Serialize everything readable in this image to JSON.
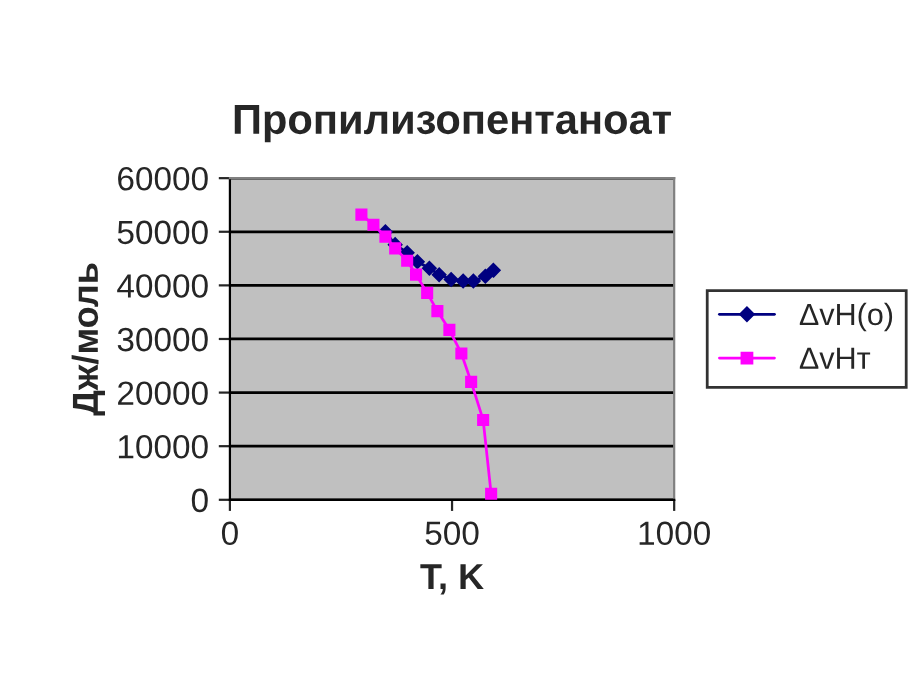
{
  "chart_data": {
    "type": "line",
    "title": "Пропилизопентаноат",
    "xlabel": "T, K",
    "ylabel": "Дж/моль",
    "xlim": [
      0,
      1000
    ],
    "xticks": [
      0,
      500,
      1000
    ],
    "ylim": [
      0,
      60000
    ],
    "yticks": [
      0,
      10000,
      20000,
      30000,
      40000,
      50000,
      60000
    ],
    "grid": "y",
    "legend": "right",
    "series": [
      {
        "name": "ΔvH(o)",
        "color": "#000080",
        "marker": "diamond",
        "x": [
          350,
          372,
          399,
          422,
          449,
          471,
          498,
          525,
          548,
          575,
          593
        ],
        "values": [
          50000,
          47600,
          46100,
          44400,
          43200,
          42000,
          41100,
          40800,
          40800,
          41700,
          42800
        ]
      },
      {
        "name": "ΔvHт",
        "color": "#ff00ff",
        "marker": "square",
        "x": [
          296,
          323,
          350,
          372,
          399,
          419,
          444,
          467,
          494,
          521,
          543,
          570,
          588
        ],
        "values": [
          53200,
          51300,
          49100,
          46900,
          44600,
          42000,
          38600,
          35200,
          31700,
          27300,
          22000,
          14900,
          1100
        ]
      }
    ]
  }
}
